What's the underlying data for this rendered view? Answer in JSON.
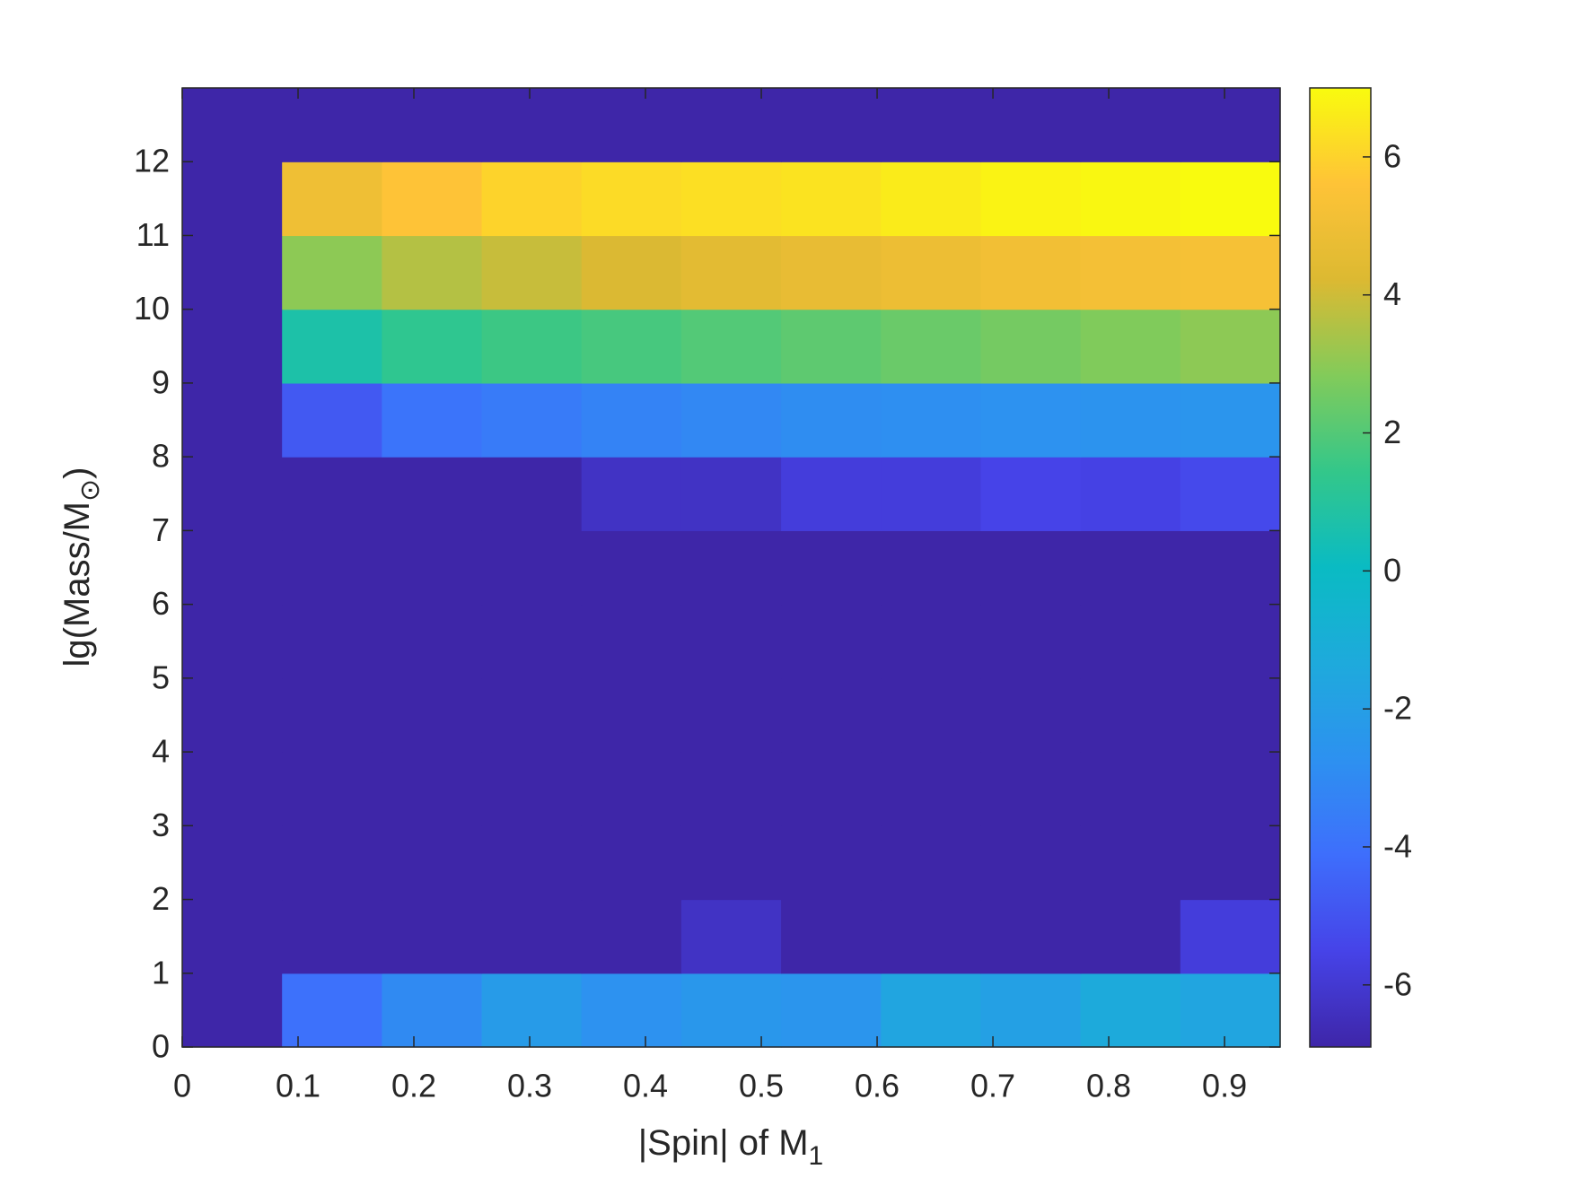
{
  "chart_data": {
    "type": "heatmap",
    "xlabel": [
      "|Spin| of M",
      "1"
    ],
    "ylabel": [
      "lg(Mass/M",
      "⊙",
      ")"
    ],
    "xlim": [
      0,
      0.948
    ],
    "ylim": [
      0,
      13
    ],
    "xticks": [
      0,
      0.1,
      0.2,
      0.3,
      0.4,
      0.5,
      0.6,
      0.7,
      0.8,
      0.9
    ],
    "yticks": [
      0,
      1,
      2,
      3,
      4,
      5,
      6,
      7,
      8,
      9,
      10,
      11,
      12
    ],
    "colormap": "parula",
    "clim": [
      -6.9,
      7
    ],
    "cticks": [
      -6,
      -4,
      -2,
      0,
      2,
      4,
      6
    ],
    "z": [
      [
        -6.9,
        -4.0,
        -3.0,
        -2.2,
        -2.7,
        -2.4,
        -2.5,
        -1.6,
        -1.9,
        -1.3,
        -1.6
      ],
      [
        -6.9,
        -6.9,
        -6.9,
        -6.9,
        -6.9,
        -6.3,
        -6.9,
        -6.9,
        -6.9,
        -6.9,
        -5.8
      ],
      [
        -6.9,
        -6.9,
        -6.9,
        -6.9,
        -6.9,
        -6.9,
        -6.9,
        -6.9,
        -6.9,
        -6.9,
        -6.9
      ],
      [
        -6.9,
        -6.9,
        -6.9,
        -6.9,
        -6.9,
        -6.9,
        -6.9,
        -6.9,
        -6.9,
        -6.9,
        -6.9
      ],
      [
        -6.9,
        -6.9,
        -6.9,
        -6.9,
        -6.9,
        -6.9,
        -6.9,
        -6.9,
        -6.9,
        -6.9,
        -6.9
      ],
      [
        -6.9,
        -6.9,
        -6.9,
        -6.9,
        -6.9,
        -6.9,
        -6.9,
        -6.9,
        -6.9,
        -6.9,
        -6.9
      ],
      [
        -6.9,
        -6.9,
        -6.9,
        -6.9,
        -6.9,
        -6.9,
        -6.9,
        -6.9,
        -6.9,
        -6.9,
        -6.9
      ],
      [
        -6.9,
        -6.9,
        -6.9,
        -6.9,
        -6.3,
        -6.3,
        -5.8,
        -5.8,
        -5.5,
        -5.6,
        -5.3
      ],
      [
        -6.9,
        -4.8,
        -3.9,
        -3.6,
        -3.3,
        -3.1,
        -2.9,
        -2.8,
        -2.7,
        -2.6,
        -2.5
      ],
      [
        -6.9,
        0.7,
        1.3,
        1.6,
        1.8,
        2.0,
        2.2,
        2.4,
        2.6,
        2.8,
        3.0
      ],
      [
        -6.9,
        3.0,
        3.6,
        3.9,
        4.2,
        4.5,
        4.7,
        4.9,
        5.1,
        5.2,
        5.3
      ],
      [
        -6.9,
        5.0,
        5.6,
        6.0,
        6.2,
        6.3,
        6.4,
        6.6,
        6.8,
        6.9,
        7.0
      ],
      [
        -6.9,
        -6.9,
        -6.9,
        -6.9,
        -6.9,
        -6.9,
        -6.9,
        -6.9,
        -6.9,
        -6.9,
        -6.9
      ]
    ]
  }
}
